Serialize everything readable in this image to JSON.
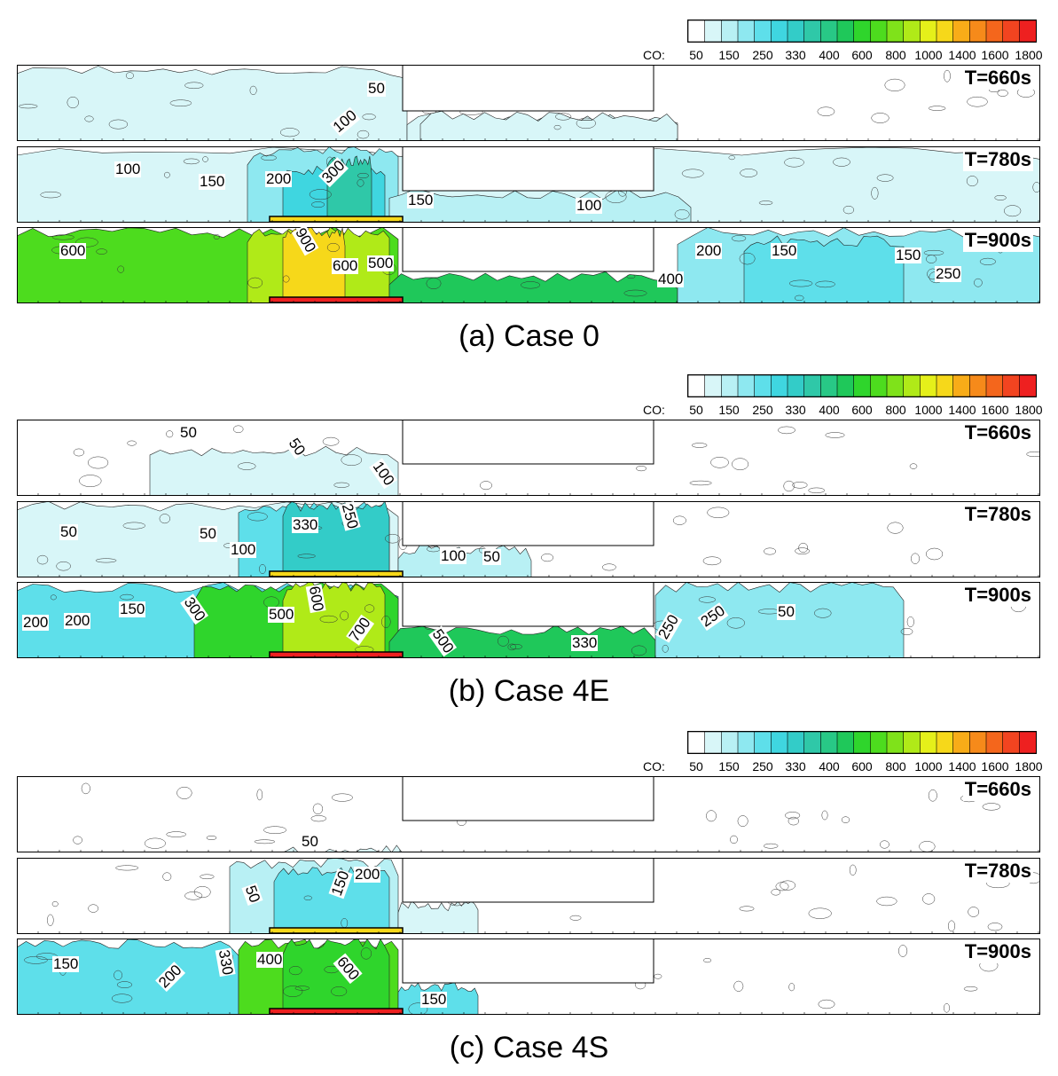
{
  "chart_data": {
    "type": "heatmap",
    "colorbar": {
      "label": "CO:",
      "levels": [
        "50",
        "150",
        "250",
        "330",
        "400",
        "600",
        "800",
        "1000",
        "1400",
        "1600",
        "1800"
      ],
      "tick_text": "50   150  250  330  400  600  800  10001400160018 00",
      "colors": [
        "#ffffff",
        "#d8f6f8",
        "#b8f0f4",
        "#8ee8f0",
        "#5edfea",
        "#3fd6e0",
        "#33ccc8",
        "#2fc8a8",
        "#28c886",
        "#1fc85a",
        "#2fd52c",
        "#4ddc1e",
        "#7fe21a",
        "#b0ea18",
        "#e5f01a",
        "#f6d81a",
        "#f8ac18",
        "#f68a1a",
        "#f4661c",
        "#f24420",
        "#ee2020"
      ]
    },
    "cases": [
      {
        "caption": "(a) Case 0",
        "panels": [
          {
            "time": "T=660s",
            "labels": [
              "50",
              "100"
            ]
          },
          {
            "time": "T=780s",
            "labels": [
              "100",
              "150",
              "200",
              "300",
              "150",
              "100"
            ]
          },
          {
            "time": "T=900s",
            "labels": [
              "600",
              "900",
              "600",
              "500",
              "400",
              "200",
              "150",
              "150",
              "250"
            ]
          }
        ]
      },
      {
        "caption": "(b) Case 4E",
        "panels": [
          {
            "time": "T=660s",
            "labels": [
              "50",
              "50",
              "100"
            ]
          },
          {
            "time": "T=780s",
            "labels": [
              "50",
              "50",
              "100",
              "330",
              "250",
              "100",
              "50"
            ]
          },
          {
            "time": "T=900s",
            "labels": [
              "200",
              "200",
              "150",
              "300",
              "500",
              "600",
              "700",
              "500",
              "330",
              "250",
              "250",
              "50"
            ]
          }
        ]
      },
      {
        "caption": "(c) Case 4S",
        "panels": [
          {
            "time": "T=660s",
            "labels": [
              "50"
            ]
          },
          {
            "time": "T=780s",
            "labels": [
              "50",
              "150",
              "200"
            ]
          },
          {
            "time": "T=900s",
            "labels": [
              "150",
              "200",
              "330",
              "400",
              "600",
              "150"
            ]
          }
        ]
      }
    ]
  }
}
